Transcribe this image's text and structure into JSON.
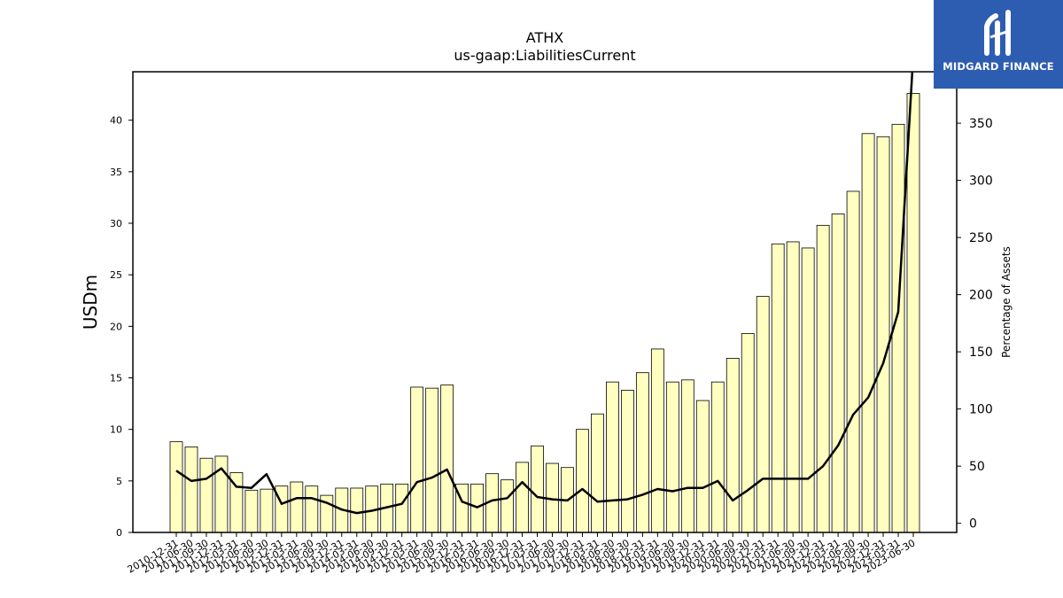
{
  "chart_data": {
    "type": "bar",
    "title": "ATHX",
    "subtitle": "us-gaap:LiabilitiesCurrent",
    "ylabel": "USDm",
    "y2label": "Percentage of Assets",
    "ylim": [
      0,
      44.7
    ],
    "y2lim": [
      -8,
      395
    ],
    "yticks": [
      0,
      5,
      10,
      15,
      20,
      25,
      30,
      35,
      40
    ],
    "y2ticks": [
      0,
      50,
      100,
      150,
      200,
      250,
      300,
      350
    ],
    "bar_color": "#ffffc0",
    "line_color": "#000000",
    "categories": [
      "2010-12-31",
      "2011-06-30",
      "2011-09-30",
      "2011-12-31",
      "2012-03-31",
      "2012-06-30",
      "2012-09-30",
      "2012-12-31",
      "2013-03-31",
      "2013-06-30",
      "2013-09-30",
      "2013-12-31",
      "2014-03-31",
      "2014-06-30",
      "2014-09-30",
      "2014-12-31",
      "2015-03-31",
      "2015-06-30",
      "2015-09-30",
      "2015-12-31",
      "2016-03-31",
      "2016-06-30",
      "2016-09-30",
      "2016-12-31",
      "2017-03-31",
      "2017-06-30",
      "2017-09-30",
      "2017-12-31",
      "2018-03-31",
      "2018-06-30",
      "2018-09-30",
      "2018-12-31",
      "2019-03-31",
      "2019-06-30",
      "2019-09-30",
      "2019-12-31",
      "2020-03-31",
      "2020-06-30",
      "2020-09-30",
      "2020-12-31",
      "2021-03-31",
      "2021-06-30",
      "2021-09-30",
      "2021-12-31",
      "2022-03-31",
      "2022-06-30",
      "2022-09-30",
      "2022-12-31",
      "2023-03-31",
      "2023-06-30"
    ],
    "series": [
      {
        "axis": "left",
        "kind": "bar",
        "values": [
          8.8,
          8.3,
          7.2,
          7.4,
          5.8,
          4.1,
          4.2,
          4.5,
          4.9,
          4.5,
          3.6,
          4.3,
          4.3,
          4.5,
          4.7,
          4.7,
          14.1,
          14.0,
          14.3,
          4.7,
          4.7,
          5.7,
          5.1,
          6.8,
          8.4,
          6.7,
          6.3,
          10.0,
          11.5,
          14.6,
          13.8,
          15.5,
          17.8,
          14.6,
          14.8,
          12.8,
          14.6,
          16.9,
          19.3,
          22.9,
          28.0,
          28.2,
          27.6,
          29.8,
          30.9,
          33.1,
          38.7,
          38.4,
          39.6,
          42.6
        ]
      },
      {
        "axis": "right",
        "kind": "line",
        "values": [
          46,
          37,
          39,
          48,
          32,
          31,
          43,
          17,
          22,
          22,
          18,
          12,
          9,
          11,
          14,
          17,
          36,
          40,
          47,
          19,
          14,
          20,
          22,
          36,
          23,
          21,
          20,
          30,
          19,
          20,
          21,
          25,
          30,
          28,
          31,
          31,
          37,
          20,
          29,
          39,
          39,
          39,
          39,
          50,
          68,
          95,
          110,
          140,
          185,
          410
        ]
      }
    ]
  },
  "logo": {
    "text": "MIDGARD FINANCE"
  }
}
